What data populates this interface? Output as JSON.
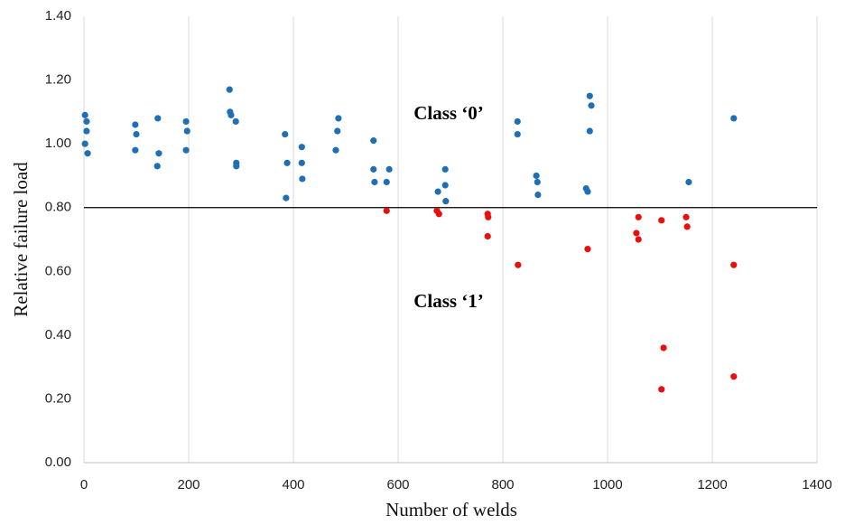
{
  "chart_data": {
    "type": "scatter",
    "x_label": "Number of welds",
    "y_label": "Relative failure load",
    "annotations": [
      "Class ‘0’",
      "Class ‘1’"
    ],
    "threshold": 0.8,
    "xlim": [
      0,
      1400
    ],
    "xticks": [
      0,
      200,
      400,
      600,
      800,
      1000,
      1200,
      1400
    ],
    "ylim": [
      0,
      1.4
    ],
    "yticks": [
      {
        "value": 0,
        "label": "0.00"
      },
      {
        "value": 0.2,
        "label": "0.20"
      },
      {
        "value": 0.4,
        "label": "0.40"
      },
      {
        "value": 0.6,
        "label": "0.60"
      },
      {
        "value": 0.8,
        "label": "0.80"
      },
      {
        "value": 1.0,
        "label": "1.00"
      },
      {
        "value": 1.2,
        "label": "1.20"
      },
      {
        "value": 1.4,
        "label": "1.40"
      }
    ],
    "grid": "x",
    "series": [
      {
        "color": "#1f6fb5",
        "x": [
          2,
          5,
          5,
          2,
          7,
          98,
          100,
          98,
          141,
          143,
          140,
          195,
          197,
          195,
          278,
          279,
          281,
          290,
          291,
          291,
          384,
          388,
          386,
          416,
          416,
          417,
          486,
          484,
          481,
          553,
          553,
          555,
          578,
          583,
          676,
          690,
          690,
          691,
          828,
          828,
          864,
          866,
          867,
          966,
          969,
          966,
          959,
          962,
          1155,
          1241
        ],
        "values": [
          1.09,
          1.07,
          1.04,
          1.0,
          0.97,
          1.06,
          1.03,
          0.98,
          1.08,
          0.97,
          0.93,
          1.07,
          1.04,
          0.98,
          1.17,
          1.1,
          1.09,
          1.07,
          0.94,
          0.93,
          1.03,
          0.94,
          0.83,
          0.99,
          0.94,
          0.89,
          1.08,
          1.04,
          0.98,
          1.01,
          0.92,
          0.88,
          0.88,
          0.92,
          0.85,
          0.92,
          0.87,
          0.82,
          1.07,
          1.03,
          0.9,
          0.88,
          0.84,
          1.15,
          1.12,
          1.04,
          0.86,
          0.85,
          0.88,
          1.08
        ]
      },
      {
        "color": "#e8100f",
        "x": [
          578,
          674,
          678,
          771,
          772,
          771,
          829,
          962,
          1059,
          1055,
          1059,
          1103,
          1107,
          1103,
          1150,
          1152,
          1241,
          1241
        ],
        "values": [
          0.79,
          0.79,
          0.78,
          0.78,
          0.77,
          0.71,
          0.62,
          0.67,
          0.77,
          0.72,
          0.7,
          0.76,
          0.36,
          0.23,
          0.77,
          0.74,
          0.62,
          0.27
        ]
      }
    ]
  }
}
